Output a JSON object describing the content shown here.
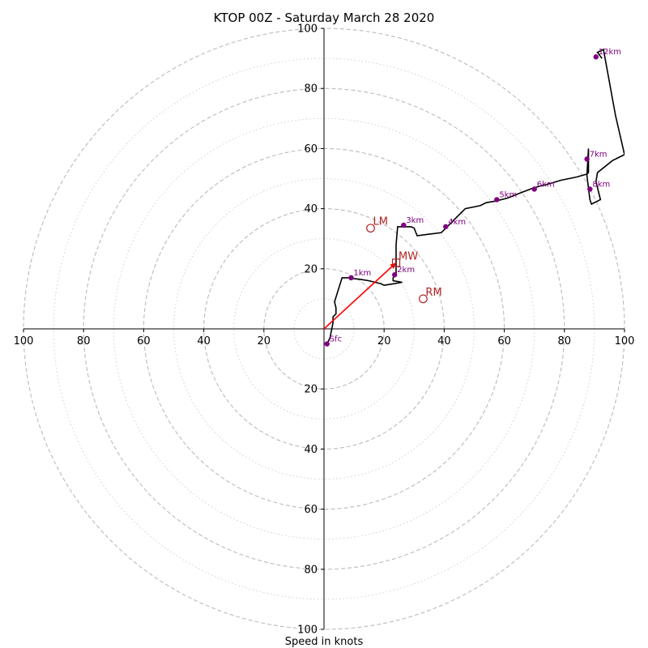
{
  "chart_data": {
    "type": "hodograph",
    "title": "KTOP 00Z - Saturday March 28 2020",
    "xlabel": "Speed in knots",
    "xlim": [
      -100,
      100
    ],
    "ylim": [
      -100,
      100
    ],
    "ring_major_step": 20,
    "ring_minor_step": 10,
    "x_ticks": [
      {
        "value": -100,
        "label": "100"
      },
      {
        "value": -80,
        "label": "80"
      },
      {
        "value": -60,
        "label": "60"
      },
      {
        "value": -40,
        "label": "40"
      },
      {
        "value": -20,
        "label": "20"
      },
      {
        "value": 20,
        "label": "20"
      },
      {
        "value": 40,
        "label": "40"
      },
      {
        "value": 60,
        "label": "60"
      },
      {
        "value": 80,
        "label": "80"
      },
      {
        "value": 100,
        "label": "100"
      }
    ],
    "y_ticks": [
      {
        "value": 100,
        "label": "100"
      },
      {
        "value": 80,
        "label": "80"
      },
      {
        "value": 60,
        "label": "60"
      },
      {
        "value": 40,
        "label": "40"
      },
      {
        "value": 20,
        "label": "20"
      },
      {
        "value": -20,
        "label": "20"
      },
      {
        "value": -40,
        "label": "40"
      },
      {
        "value": -60,
        "label": "60"
      },
      {
        "value": -80,
        "label": "80"
      },
      {
        "value": -100,
        "label": "100"
      }
    ],
    "trace": {
      "u": [
        1,
        2,
        3,
        3,
        4,
        4,
        3.5,
        6,
        8,
        9,
        12,
        15,
        19,
        20,
        23,
        26,
        23,
        23,
        24,
        24,
        24,
        24,
        24.5,
        26,
        29,
        30,
        31,
        35,
        39,
        41,
        43,
        47,
        52,
        54,
        57,
        61,
        66,
        70,
        74,
        79,
        84,
        87.5,
        88,
        88,
        88,
        88,
        87.5,
        88.5,
        89,
        92,
        90.5,
        91,
        96,
        100,
        97,
        93,
        91,
        92.5
      ],
      "v": [
        -5,
        -3,
        2,
        4,
        5,
        7,
        9,
        17,
        17,
        16.8,
        16.5,
        16,
        15,
        14.5,
        15,
        15.5,
        16,
        17,
        18,
        20,
        25,
        28,
        34,
        34,
        34,
        33.5,
        31,
        31.5,
        32,
        34,
        36,
        40,
        41,
        42,
        42.5,
        43.5,
        45.5,
        47,
        48,
        49.5,
        50.5,
        51.5,
        52,
        54,
        56,
        60,
        51,
        43,
        41.5,
        43,
        49,
        52,
        56,
        58,
        71,
        93,
        92,
        90
      ]
    },
    "height_markers": [
      {
        "label": "Sfc",
        "u": 1,
        "v": -5
      },
      {
        "label": "1km",
        "u": 9,
        "v": 17
      },
      {
        "label": "2km",
        "u": 23.5,
        "v": 18
      },
      {
        "label": "3km",
        "u": 26.5,
        "v": 34.5
      },
      {
        "label": "4km",
        "u": 40.5,
        "v": 34
      },
      {
        "label": "5km",
        "u": 57.5,
        "v": 43
      },
      {
        "label": "6km",
        "u": 70,
        "v": 46.5
      },
      {
        "label": "7km",
        "u": 87.5,
        "v": 56.5
      },
      {
        "label": "8km",
        "u": 88.5,
        "v": 46.5
      },
      {
        "label": "12km",
        "u": 90.5,
        "v": 90.5
      }
    ],
    "vectors": [
      {
        "label": "LM",
        "marker": "circle",
        "u": 15.5,
        "v": 33.5
      },
      {
        "label": "MW",
        "marker": "square",
        "u": 24,
        "v": 22
      },
      {
        "label": "RM",
        "marker": "circle",
        "u": 33,
        "v": 10
      }
    ],
    "arrow": {
      "from": [
        0,
        0
      ],
      "to": [
        24,
        22
      ]
    },
    "colors": {
      "trace": "#000000",
      "height_marker": "#800080",
      "vector": "#b22222",
      "arrow": "#ff0000",
      "ring": "#bbbbbb"
    }
  }
}
